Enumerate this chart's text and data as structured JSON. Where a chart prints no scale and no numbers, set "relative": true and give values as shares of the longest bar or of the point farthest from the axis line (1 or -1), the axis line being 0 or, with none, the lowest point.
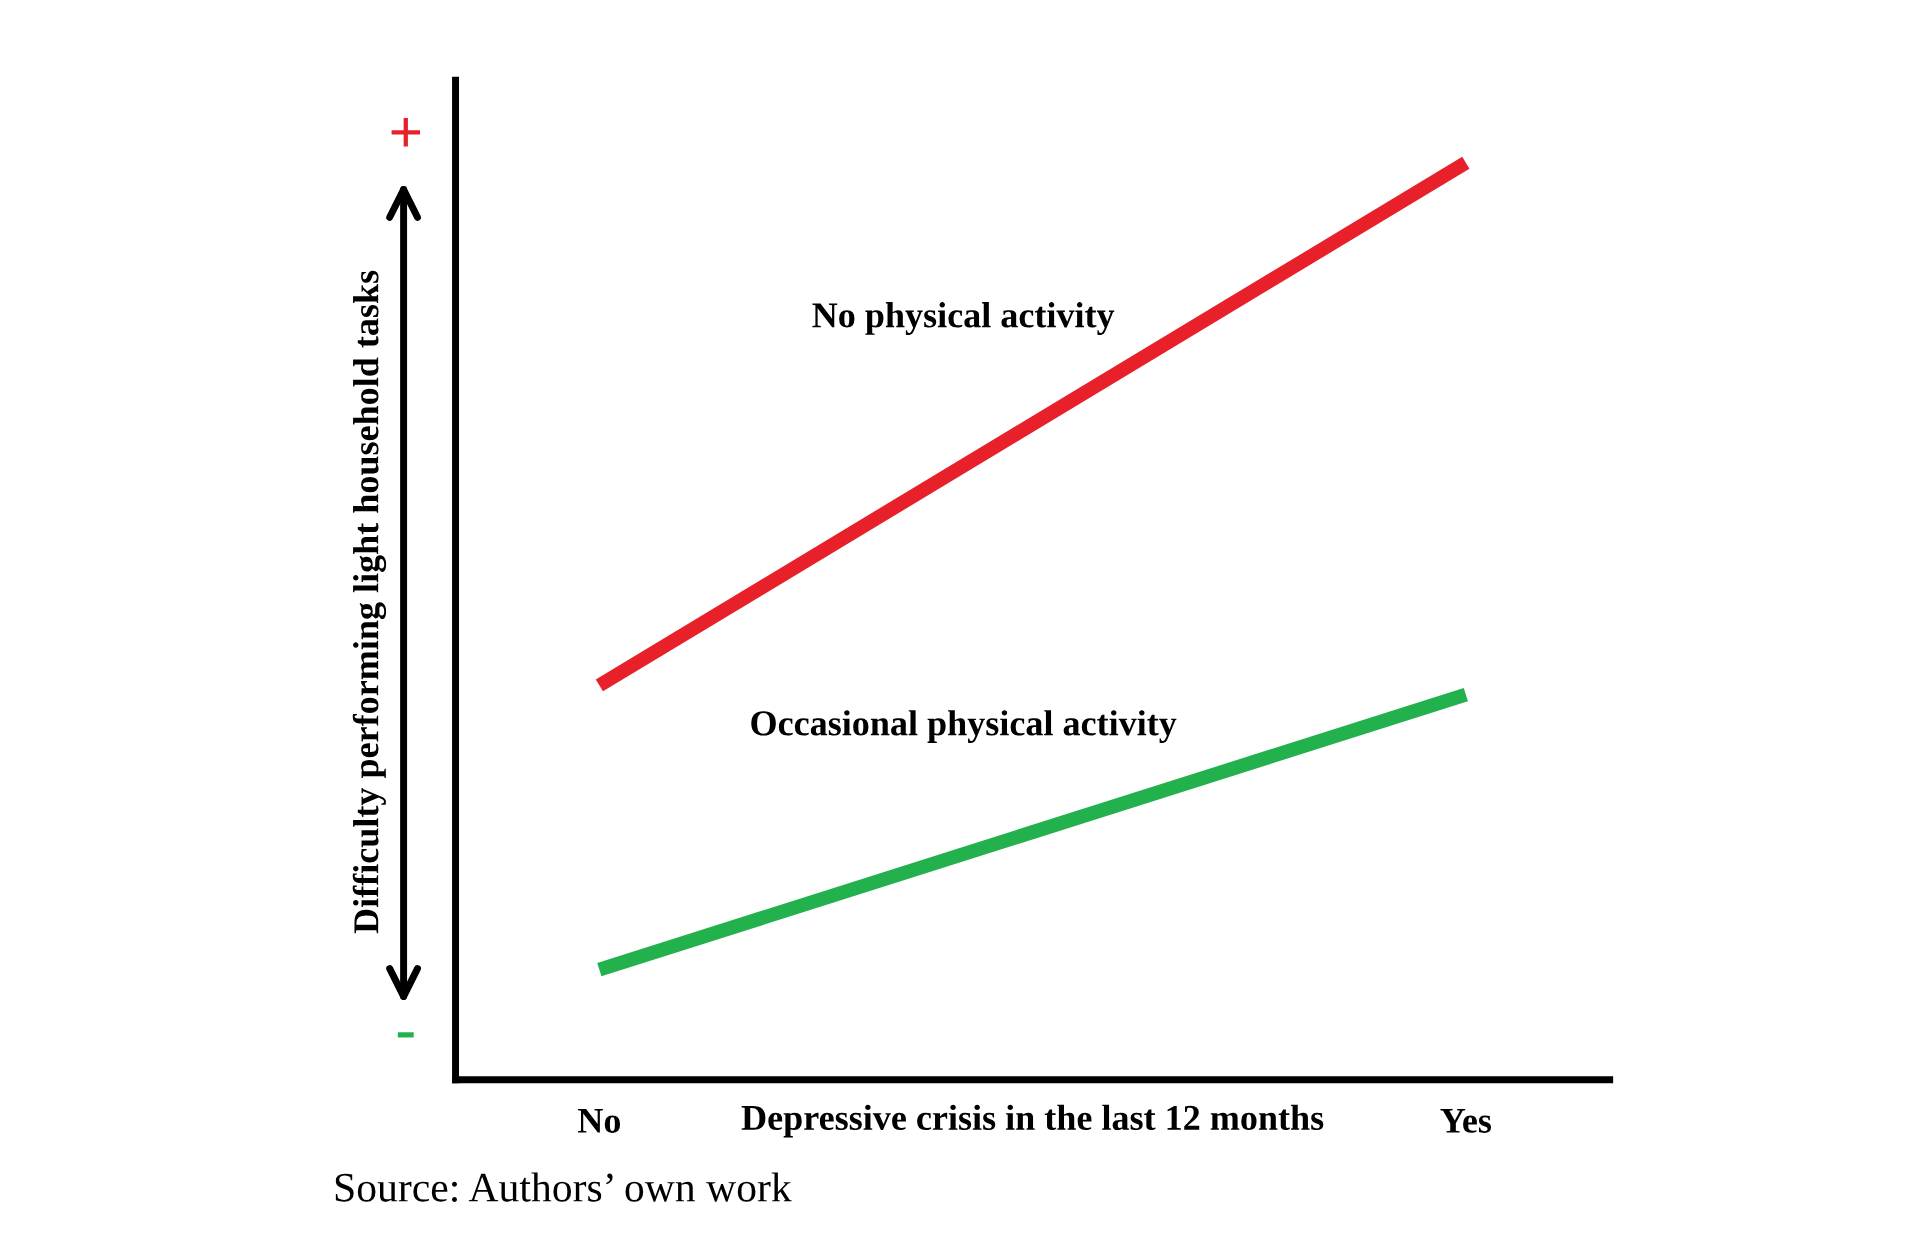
{
  "chart_data": {
    "type": "line",
    "relative": true,
    "categories": [
      "No",
      "Yes"
    ],
    "xlabel": "Depressive crisis in the last 12 months",
    "ylabel": "Difficulty performing light household tasks",
    "series": [
      {
        "name": "No physical activity",
        "color": "#e8202a",
        "values": [
          0.43,
          1
        ]
      },
      {
        "name": "Occasional physical activity",
        "color": "#22b14c",
        "values": [
          0.12,
          0.42
        ]
      }
    ],
    "annotations": [
      "+",
      "-",
      "Source: Authors’ own work"
    ],
    "legend": false,
    "grid": false,
    "marker": "none",
    "line_style": "solid"
  }
}
